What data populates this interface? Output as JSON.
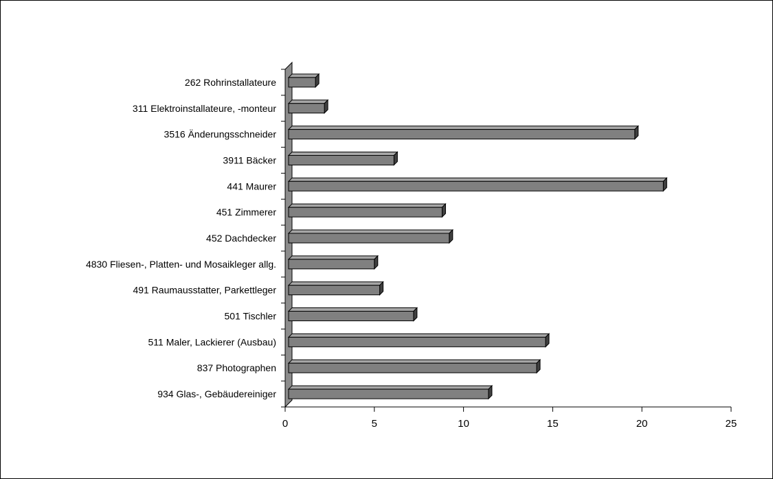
{
  "chart_data": {
    "type": "bar",
    "orientation": "horizontal",
    "style": "3d",
    "categories": [
      "262 Rohrinstallateure",
      "311 Elektroinstallateure, -monteur",
      "3516 Änderungsschneider",
      "3911 Bäcker",
      "441 Maurer",
      "451 Zimmerer",
      "452 Dachdecker",
      "4830 Fliesen-, Platten- und Mosaikleger allg.",
      "491 Raumausstatter, Parkettleger",
      "501 Tischler",
      "511 Maler, Lackierer (Ausbau)",
      "837 Photographen",
      "934 Glas-, Gebäudereiniger"
    ],
    "values": [
      1.7,
      2.2,
      19.6,
      6.1,
      21.2,
      8.8,
      9.2,
      5.0,
      5.3,
      7.2,
      14.6,
      14.1,
      11.4
    ],
    "xlim": [
      0,
      25
    ],
    "xticks": [
      "0",
      "5",
      "10",
      "15",
      "20",
      "25"
    ],
    "title": "",
    "xlabel": "",
    "ylabel": "",
    "grid": false,
    "legend": "none",
    "colors": {
      "bar_face": "#808080",
      "bar_top": "#a6a6a6",
      "bar_side": "#404040",
      "wall": "#8c8c8c",
      "outline": "#000000"
    }
  }
}
